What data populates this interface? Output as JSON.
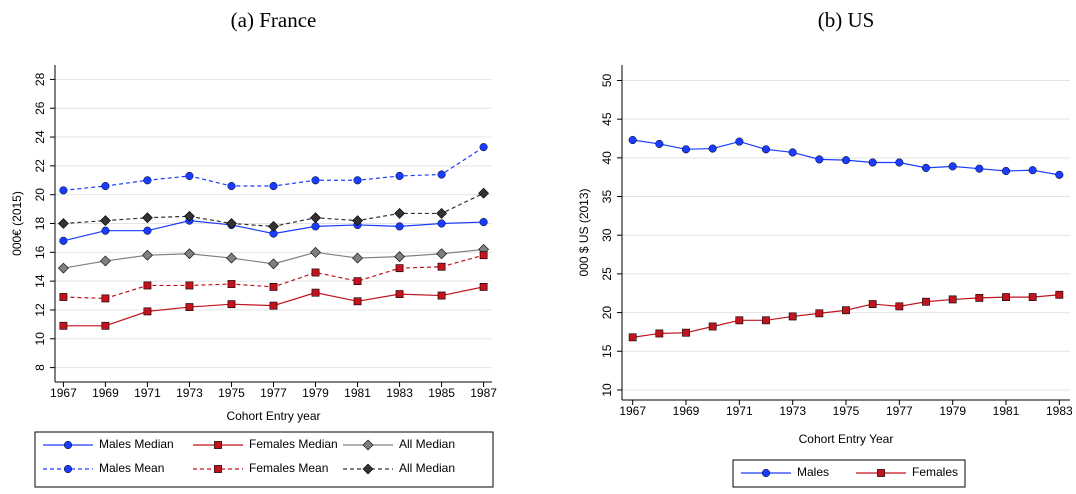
{
  "chart_data": [
    {
      "type": "line",
      "title": "(a) France",
      "xlabel": "Cohort Entry year",
      "ylabel": "000€ (2015)",
      "x": [
        1967,
        1969,
        1971,
        1973,
        1975,
        1977,
        1979,
        1981,
        1983,
        1985,
        1987
      ],
      "xlim": [
        1966.6,
        1987.4
      ],
      "xticks": [
        1967,
        1969,
        1971,
        1973,
        1975,
        1977,
        1979,
        1981,
        1983,
        1985,
        1987
      ],
      "ylim": [
        7,
        29
      ],
      "yticks": [
        8,
        10,
        12,
        14,
        16,
        18,
        20,
        22,
        24,
        26,
        28
      ],
      "grid": true,
      "series": [
        {
          "name": "Males Median",
          "color": "#1a3cff",
          "marker": "circle",
          "dash": false,
          "values": [
            16.8,
            17.5,
            17.5,
            18.2,
            17.9,
            17.3,
            17.8,
            17.9,
            17.8,
            18.0,
            18.1
          ]
        },
        {
          "name": "Females Median",
          "color": "#c0141e",
          "marker": "square",
          "dash": false,
          "values": [
            10.9,
            10.9,
            11.9,
            12.2,
            12.4,
            12.3,
            13.2,
            12.6,
            13.1,
            13.0,
            13.6
          ]
        },
        {
          "name": "All Median",
          "color": "#808080",
          "marker": "diamond",
          "dash": false,
          "values": [
            14.9,
            15.4,
            15.8,
            15.9,
            15.6,
            15.2,
            16.0,
            15.6,
            15.7,
            15.9,
            16.2
          ]
        },
        {
          "name": "Males Mean",
          "color": "#1a3cff",
          "marker": "circle",
          "dash": true,
          "values": [
            20.3,
            20.6,
            21.0,
            21.3,
            20.6,
            20.6,
            21.0,
            21.0,
            21.3,
            21.4,
            23.3
          ]
        },
        {
          "name": "Females Mean",
          "color": "#c0141e",
          "marker": "square",
          "dash": true,
          "values": [
            12.9,
            12.8,
            13.7,
            13.7,
            13.8,
            13.6,
            14.6,
            14.0,
            14.9,
            15.0,
            15.8
          ]
        },
        {
          "name": "All Median",
          "color": "#333333",
          "marker": "diamond",
          "dash": true,
          "values": [
            18.0,
            18.2,
            18.4,
            18.5,
            18.0,
            17.8,
            18.4,
            18.2,
            18.7,
            18.7,
            20.1
          ]
        }
      ]
    },
    {
      "type": "line",
      "title": "(b) US",
      "xlabel": "Cohort Entry Year",
      "ylabel": "000 $ US (2013)",
      "x": [
        1967,
        1968,
        1969,
        1970,
        1971,
        1972,
        1973,
        1974,
        1975,
        1976,
        1977,
        1978,
        1979,
        1980,
        1981,
        1982,
        1983
      ],
      "xlim": [
        1966.6,
        1983.4
      ],
      "xticks": [
        1967,
        1969,
        1971,
        1973,
        1975,
        1977,
        1979,
        1981,
        1983
      ],
      "ylim": [
        8.7,
        52
      ],
      "yticks": [
        10,
        15,
        20,
        25,
        30,
        35,
        40,
        45,
        50
      ],
      "grid": true,
      "series": [
        {
          "name": "Males",
          "color": "#1a3cff",
          "marker": "circle",
          "dash": false,
          "values": [
            42.3,
            41.8,
            41.1,
            41.2,
            42.1,
            41.1,
            40.7,
            39.8,
            39.7,
            39.4,
            39.4,
            38.7,
            38.9,
            38.6,
            38.3,
            38.4,
            37.8
          ]
        },
        {
          "name": "Females",
          "color": "#c0141e",
          "marker": "square",
          "dash": false,
          "values": [
            16.8,
            17.3,
            17.4,
            18.2,
            19.0,
            19.0,
            19.5,
            19.9,
            20.3,
            21.1,
            20.8,
            21.4,
            21.7,
            21.9,
            22.0,
            22.0,
            22.3
          ]
        }
      ]
    }
  ]
}
